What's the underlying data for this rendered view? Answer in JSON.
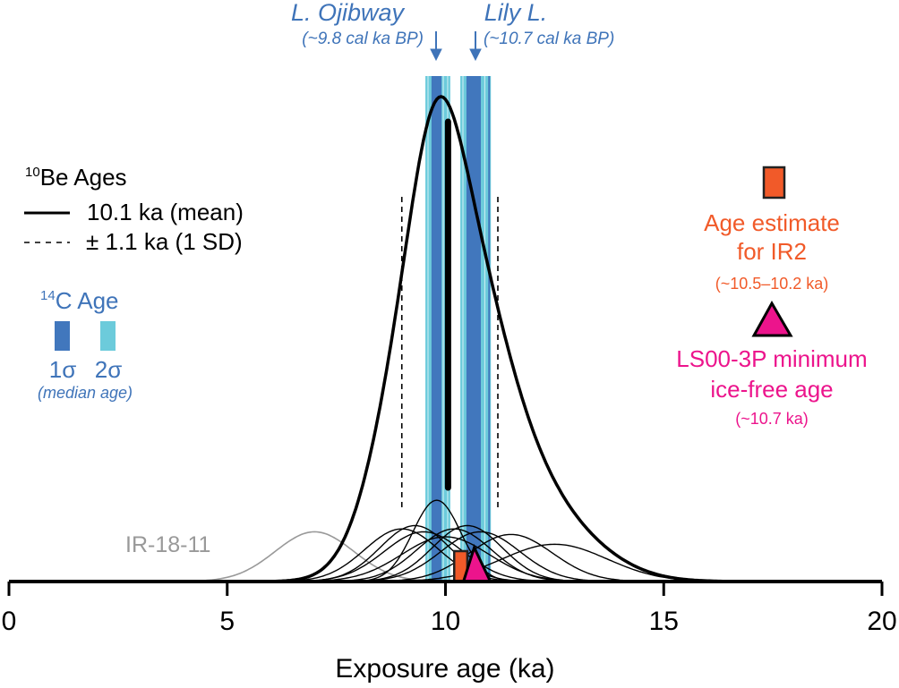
{
  "chart_data": {
    "type": "line",
    "xlabel": "Exposure age (ka)",
    "xlim": [
      0,
      20
    ],
    "xticks": [
      "0",
      "5",
      "10",
      "15",
      "20"
    ],
    "grid": false,
    "samples": [
      {
        "age": 9.8,
        "sd": 0.55
      },
      {
        "age": 9.0,
        "sd": 0.85
      },
      {
        "age": 9.3,
        "sd": 0.8
      },
      {
        "age": 9.5,
        "sd": 0.9
      },
      {
        "age": 10.0,
        "sd": 1.0
      },
      {
        "age": 10.2,
        "sd": 0.85
      },
      {
        "age": 10.5,
        "sd": 0.8
      },
      {
        "age": 10.8,
        "sd": 0.9
      },
      {
        "age": 11.5,
        "sd": 0.95
      },
      {
        "age": 12.5,
        "sd": 1.2
      }
    ],
    "outlier": {
      "name": "IR-18-11",
      "age": 7.0,
      "sd": 0.9
    },
    "be10_legend": {
      "title_sup": "10",
      "title": "Be Ages",
      "mean_label": "10.1 ka (mean)",
      "sd_label": "± 1.1 ka (1 SD)",
      "mean": 10.1,
      "sd": 1.1
    },
    "c14_legend": {
      "title_sup": "14",
      "title": "C Age",
      "one_sigma": "1σ",
      "two_sigma": "2σ",
      "note": "(median age)"
    },
    "c14_bands": {
      "two_sigma": [
        [
          9.54,
          10.11
        ],
        [
          10.34,
          11.04
        ]
      ],
      "one_sigma": [
        [
          9.68,
          9.91
        ],
        [
          10.48,
          10.81
        ],
        [
          10.98,
          11.02
        ]
      ]
    },
    "annotations": [
      {
        "name": "L. Ojibway",
        "detail": "(~9.8 cal ka BP)",
        "age": 9.8
      },
      {
        "name": "Lily L.",
        "detail": "(~10.7 cal ka BP)",
        "age": 10.7
      }
    ],
    "ir2": {
      "label1": "Age estimate",
      "label2": "for IR2",
      "detail": "(~10.5–10.2 ka)",
      "range": [
        10.2,
        10.5
      ]
    },
    "ls00": {
      "label1": "LS00-3P minimum",
      "label2": "ice-free age",
      "detail": "(~10.7 ka)",
      "age": 10.7
    },
    "colors": {
      "one_sigma": "#4177bd",
      "two_sigma": "#6ccbdb",
      "text_blue": "#3f74b9",
      "orange": "#f15a29",
      "pink": "#ec148c",
      "gray": "#999999"
    }
  }
}
